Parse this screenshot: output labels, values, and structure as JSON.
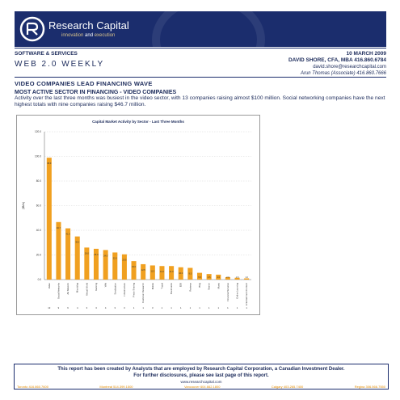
{
  "brand": {
    "name": "Research Capital",
    "tagline_pre": "innovation ",
    "tagline_and": "and",
    "tagline_post": " execution"
  },
  "header": {
    "section": "SOFTWARE & SERVICES",
    "date": "10 MARCH 2009",
    "publication": "WEB 2.0 WEEKLY",
    "analyst": "DAVID SHORE, CFA, MBA 416.860.6784",
    "email": "david.shore@researchcapital.com",
    "associate": "Arun Thomas (Associate) 416.860.7666"
  },
  "article": {
    "headline": "VIDEO COMPANIES LEAD FINANCING WAVE",
    "subhead": "MOST ACTIVE SECTOR IN FINANCING - VIDEO COMPANIES",
    "summary": "Activity over the last three months was busiest in the video sector, with 13 companies raising almost $100 million. Social networking companies have the next highest totals with nine companies raising $46.7 million."
  },
  "chart_data": {
    "type": "bar",
    "title": "Capital Market Activity by Sector - Last Three Months",
    "ylabel": "($Mn)",
    "ylim": [
      0,
      120
    ],
    "yticks": [
      "0.0",
      "20.0",
      "40.0",
      "60.0",
      "80.0",
      "100.0",
      "120.0"
    ],
    "grid": true,
    "bar_color": "#f0a020",
    "categories": [
      "Video",
      "Social Networks",
      "Ad Network",
      "Microblog",
      "Virtual World",
      "Gaming",
      "Wiki",
      "Syndication",
      "Infrastructure",
      "Photo Sharing",
      "Customer Research",
      "Mobile",
      "Travel",
      "Bookmarks",
      "B2B",
      "Reviews",
      "Blog",
      "Search",
      "Music",
      "Financial Services",
      "Online Learning",
      "Entertainment Content"
    ],
    "values": [
      98.9,
      46.7,
      41.6,
      35.0,
      26.0,
      25.0,
      24.0,
      22.0,
      20.5,
      15.0,
      12.5,
      11.5,
      11.0,
      11.0,
      10.0,
      9.5,
      5.5,
      4.5,
      4.0,
      2.0,
      1.5,
      1.0
    ],
    "value_labels": [
      "98.9",
      "46.7",
      "41.6",
      "35.0",
      "26.0",
      "25.0",
      "24.0",
      "22.0",
      "20.5",
      "15.0",
      "12.5",
      "11.5",
      "11.0",
      "11.0",
      "10.0",
      "9.5",
      "5.5",
      "4.5",
      "4.0",
      "2.0",
      "1.5",
      "1.0"
    ],
    "counts": [
      "13",
      "9",
      "6",
      "4",
      "3",
      "3",
      "4",
      "3",
      "3",
      "1",
      "1",
      "3",
      "1",
      "1",
      "1",
      "1",
      "1",
      "1",
      "1",
      "1",
      "1",
      "1"
    ]
  },
  "footer": {
    "line1": "This report has been created by Analysts that are employed by Research Capital Corporation, a Canadian Investment Dealer.",
    "line2": "For further disclosures, please see last page of this report.",
    "website": "www.researchcapital.com",
    "offices": [
      "Toronto 416.860.7600",
      "Montreal 514.399.1500",
      "Vancouver 604.662.1800",
      "Calgary 403.265.7400",
      "Regina 306.566.7550"
    ]
  },
  "colors": {
    "navy": "#1b2d6d",
    "gold": "#d9c38a",
    "bar": "#f0a020",
    "office": "#e08a00"
  }
}
